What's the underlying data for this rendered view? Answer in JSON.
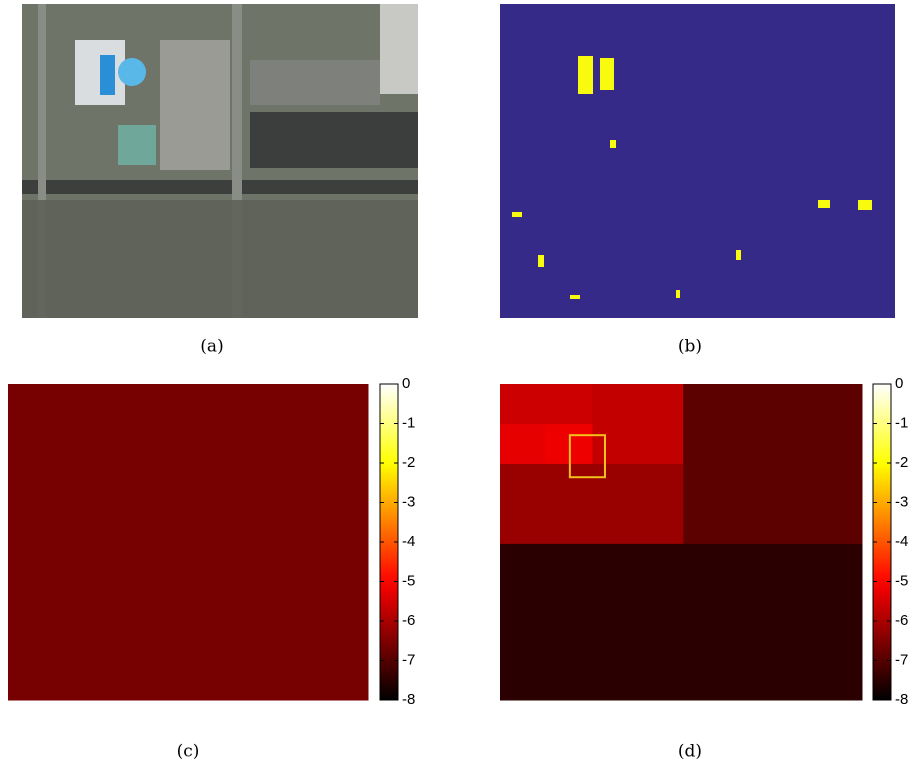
{
  "panels": [
    {
      "caption": "(a)"
    },
    {
      "caption": "(b)"
    },
    {
      "caption": "(c)",
      "heatmap": {
        "values": [
          -6.6
        ],
        "colorbar": {
          "lim": [
            -8,
            0
          ],
          "ticks": [
            0,
            -1,
            -2,
            -3,
            -4,
            -5,
            -6,
            -7,
            -8
          ]
        }
      }
    },
    {
      "caption": "(d)",
      "heatmap": {
        "values": [
          -5.6,
          -5.7,
          -5.3,
          -5.2,
          -6.2,
          -6.9,
          -7.5
        ],
        "colorbar": {
          "lim": [
            -8,
            0
          ],
          "ticks": [
            0,
            -1,
            -2,
            -3,
            -4,
            -5,
            -6,
            -7,
            -8
          ]
        }
      }
    }
  ]
}
